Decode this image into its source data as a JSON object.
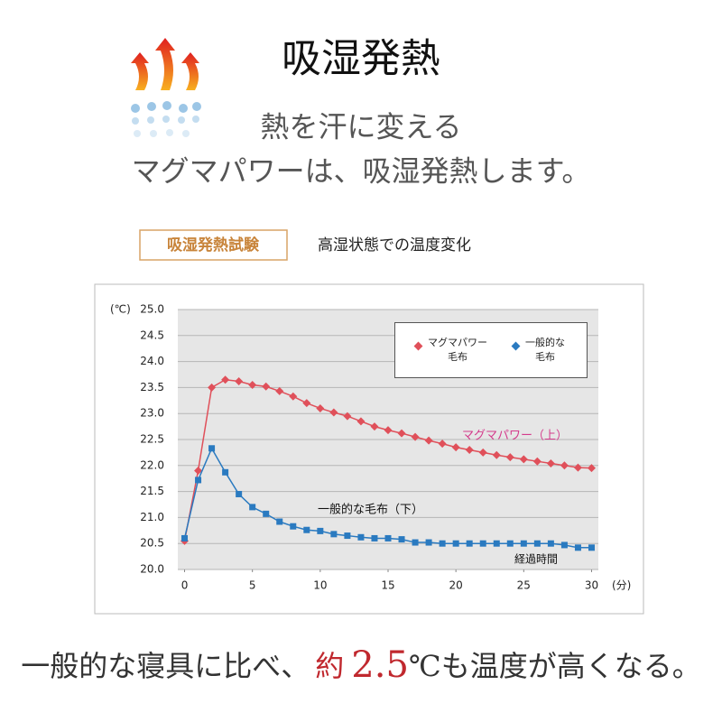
{
  "header": {
    "title": "吸湿発熱",
    "subtitle_1": "熱を汗に変える",
    "subtitle_2": "マグマパワーは、吸湿発熱します。"
  },
  "test": {
    "badge": "吸湿発熱試験",
    "caption": "高湿状態での温度変化"
  },
  "chart_data": {
    "type": "line",
    "y_unit": "(℃)",
    "x_unit": "(分)",
    "x": [
      0,
      1,
      2,
      3,
      4,
      5,
      6,
      7,
      8,
      9,
      10,
      11,
      12,
      13,
      14,
      15,
      16,
      17,
      18,
      19,
      20,
      21,
      22,
      23,
      24,
      25,
      26,
      27,
      28,
      29,
      30
    ],
    "xlim": [
      -0.5,
      30.5
    ],
    "xticks": [
      0,
      5,
      10,
      15,
      20,
      25,
      30
    ],
    "ylim": [
      20,
      25
    ],
    "yticks": [
      {
        "value": 20,
        "label": "20.0"
      },
      {
        "value": 20.5,
        "label": "20.5"
      },
      {
        "value": 21,
        "label": "21.0"
      },
      {
        "value": 21.5,
        "label": "21.5"
      },
      {
        "value": 22,
        "label": "22.0"
      },
      {
        "value": 22.5,
        "label": "22.5"
      },
      {
        "value": 23,
        "label": "23.0"
      },
      {
        "value": 23.5,
        "label": "23.5"
      },
      {
        "value": 24,
        "label": "24.0"
      },
      {
        "value": 24.5,
        "label": "24.5"
      },
      {
        "value": 25,
        "label": "25.0"
      }
    ],
    "grid": true,
    "series": [
      {
        "name": "マグマパワー\n毛布",
        "color": "#e0505a",
        "marker": "diamond",
        "values": [
          20.55,
          21.9,
          23.5,
          23.65,
          23.62,
          23.55,
          23.52,
          23.43,
          23.33,
          23.2,
          23.1,
          23.02,
          22.95,
          22.85,
          22.75,
          22.68,
          22.62,
          22.55,
          22.48,
          22.42,
          22.35,
          22.3,
          22.25,
          22.2,
          22.16,
          22.12,
          22.08,
          22.04,
          22.0,
          21.96,
          21.95
        ]
      },
      {
        "name": "一般的な\n毛布",
        "color": "#2a7ac0",
        "marker": "square",
        "values": [
          20.6,
          21.72,
          22.33,
          21.87,
          21.45,
          21.2,
          21.07,
          20.92,
          20.83,
          20.76,
          20.74,
          20.68,
          20.65,
          20.62,
          20.6,
          20.6,
          20.58,
          20.52,
          20.52,
          20.5,
          20.5,
          20.5,
          20.5,
          20.5,
          20.5,
          20.5,
          20.5,
          20.5,
          20.47,
          20.42,
          20.42
        ]
      }
    ],
    "annotations": {
      "upper": "マグマパワー（上）",
      "lower": "一般的な毛布（下）",
      "x_title": "経過時間"
    }
  },
  "footer": {
    "part_1": "一般的な寝具に比べ、",
    "part_2": "約",
    "part_3": "2.5",
    "part_4": "℃も温度が高くなる。"
  }
}
